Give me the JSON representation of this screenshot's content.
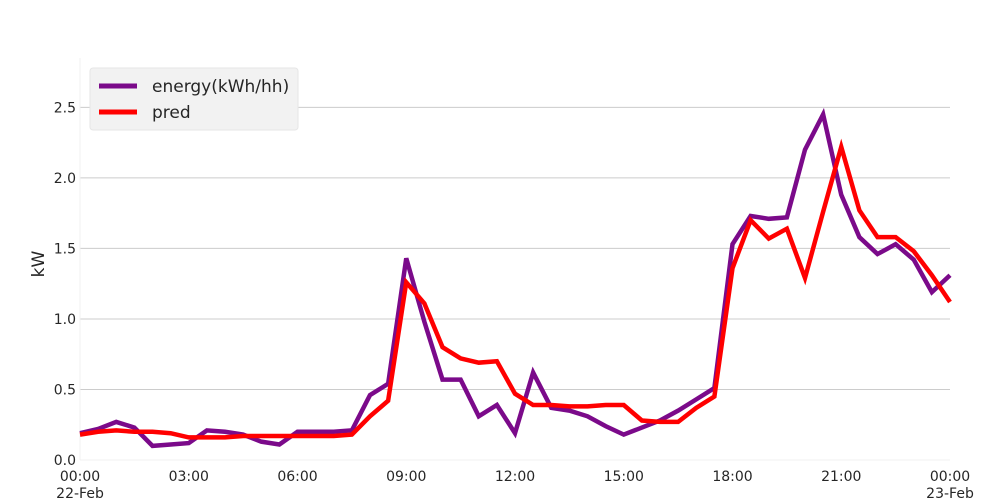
{
  "chart_data": {
    "type": "line",
    "title": "",
    "xlabel": "",
    "ylabel": "kW",
    "ylim": [
      0.0,
      2.85
    ],
    "grid": "horizontal",
    "legend_position": "top-left",
    "y_ticks": [
      "0.0",
      "0.5",
      "1.0",
      "1.5",
      "2.0",
      "2.5"
    ],
    "x_ticks": [
      {
        "label": "00:00",
        "sublabel": "22-Feb"
      },
      {
        "label": "03:00",
        "sublabel": ""
      },
      {
        "label": "06:00",
        "sublabel": ""
      },
      {
        "label": "09:00",
        "sublabel": ""
      },
      {
        "label": "12:00",
        "sublabel": ""
      },
      {
        "label": "15:00",
        "sublabel": ""
      },
      {
        "label": "18:00",
        "sublabel": ""
      },
      {
        "label": "21:00",
        "sublabel": ""
      },
      {
        "label": "00:00",
        "sublabel": "23-Feb"
      }
    ],
    "x_start": "2024-02-22 00:00",
    "x_end": "2024-02-23 00:00",
    "series": [
      {
        "name": "energy(kWh/hh)",
        "color": "#7b0a8a",
        "values": [
          0.19,
          0.22,
          0.27,
          0.23,
          0.1,
          0.11,
          0.12,
          0.21,
          0.2,
          0.18,
          0.13,
          0.11,
          0.2,
          0.2,
          0.2,
          0.21,
          0.46,
          0.54,
          1.43,
          0.98,
          0.57,
          0.57,
          0.31,
          0.39,
          0.19,
          0.62,
          0.37,
          0.35,
          0.31,
          0.24,
          0.18,
          0.23,
          0.28,
          0.35,
          0.43,
          0.51,
          1.53,
          1.73,
          1.71,
          1.72,
          2.2,
          2.45,
          1.88,
          1.58,
          1.46,
          1.53,
          1.42,
          1.19,
          1.31
        ]
      },
      {
        "name": "pred",
        "color": "#ff0000",
        "values": [
          0.18,
          0.2,
          0.21,
          0.2,
          0.2,
          0.19,
          0.16,
          0.16,
          0.16,
          0.17,
          0.17,
          0.17,
          0.17,
          0.17,
          0.17,
          0.18,
          0.31,
          0.42,
          1.26,
          1.11,
          0.8,
          0.72,
          0.69,
          0.7,
          0.47,
          0.39,
          0.39,
          0.38,
          0.38,
          0.39,
          0.39,
          0.28,
          0.27,
          0.27,
          0.37,
          0.45,
          1.36,
          1.7,
          1.57,
          1.64,
          1.29,
          1.76,
          2.22,
          1.77,
          1.58,
          1.58,
          1.48,
          1.31,
          1.12
        ]
      }
    ]
  }
}
